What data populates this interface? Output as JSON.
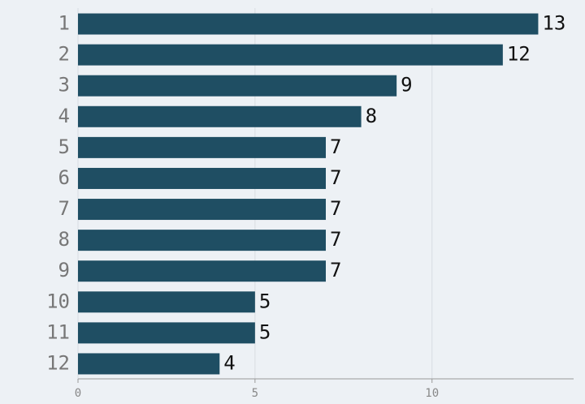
{
  "chart_data": {
    "type": "bar",
    "orientation": "horizontal",
    "categories": [
      "1",
      "2",
      "3",
      "4",
      "5",
      "6",
      "7",
      "8",
      "9",
      "10",
      "11",
      "12"
    ],
    "values": [
      13,
      12,
      9,
      8,
      7,
      7,
      7,
      7,
      7,
      5,
      5,
      4
    ],
    "color": "#1f4e63",
    "xlim": [
      0,
      14
    ],
    "xticks": [
      0,
      5,
      10
    ],
    "grid": true
  }
}
